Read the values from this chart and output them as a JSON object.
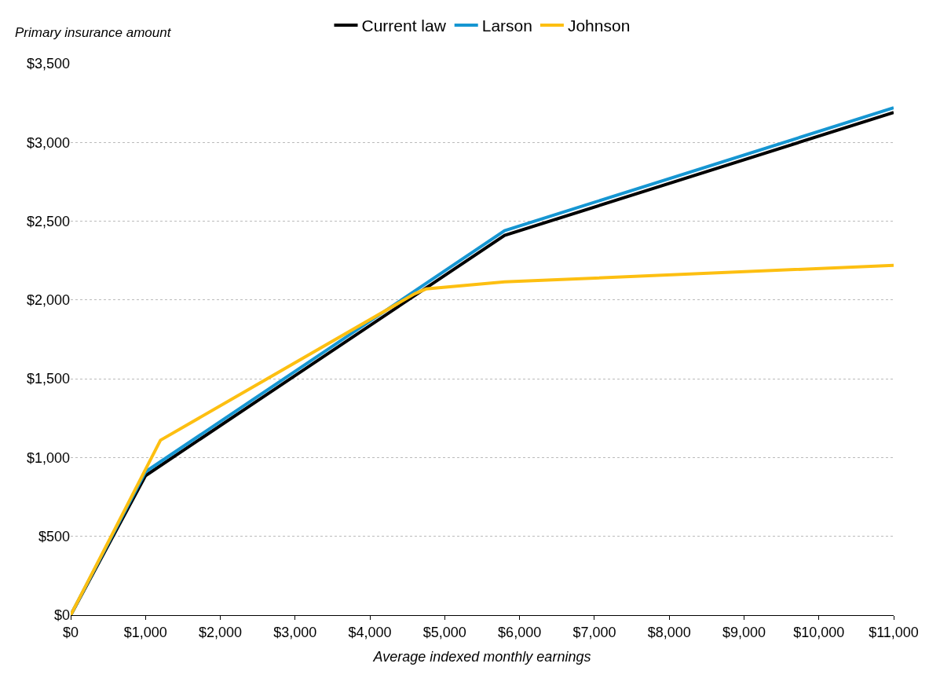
{
  "chart_data": {
    "type": "line",
    "ylabel": "Primary insurance amount",
    "xlabel": "Average indexed monthly earnings",
    "series": [
      {
        "name": "Current law",
        "color": "#000000",
        "x": [
          0,
          1000,
          5800,
          11000
        ],
        "values": [
          0,
          885,
          2410,
          3190
        ]
      },
      {
        "name": "Larson",
        "color": "#1696d2",
        "x": [
          0,
          1000,
          5800,
          11000
        ],
        "values": [
          0,
          910,
          2440,
          3220
        ]
      },
      {
        "name": "Johnson",
        "color": "#fdbf11",
        "x": [
          0,
          1200,
          4600,
          4750,
          5800,
          11000
        ],
        "values": [
          0,
          1110,
          2040,
          2070,
          2115,
          2220
        ]
      }
    ],
    "xlim": [
      0,
      11000
    ],
    "xticks": [
      {
        "value": 0,
        "label": "$0"
      },
      {
        "value": 1000,
        "label": "$1,000"
      },
      {
        "value": 2000,
        "label": "$2,000"
      },
      {
        "value": 3000,
        "label": "$3,000"
      },
      {
        "value": 4000,
        "label": "$4,000"
      },
      {
        "value": 5000,
        "label": "$5,000"
      },
      {
        "value": 6000,
        "label": "$6,000"
      },
      {
        "value": 7000,
        "label": "$7,000"
      },
      {
        "value": 8000,
        "label": "$8,000"
      },
      {
        "value": 9000,
        "label": "$9,000"
      },
      {
        "value": 10000,
        "label": "$10,000"
      },
      {
        "value": 11000,
        "label": "$11,000"
      }
    ],
    "ylim": [
      0,
      3500
    ],
    "yticks": [
      {
        "value": 0,
        "label": "$0"
      },
      {
        "value": 500,
        "label": "$500"
      },
      {
        "value": 1000,
        "label": "$1,000"
      },
      {
        "value": 1500,
        "label": "$1,500"
      },
      {
        "value": 2000,
        "label": "$2,000"
      },
      {
        "value": 2500,
        "label": "$2,500"
      },
      {
        "value": 3000,
        "label": "$3,000"
      },
      {
        "value": 3500,
        "label": "$3,500"
      }
    ],
    "grid": "y",
    "legend": "top",
    "marker": "none",
    "line_style": "solid"
  }
}
